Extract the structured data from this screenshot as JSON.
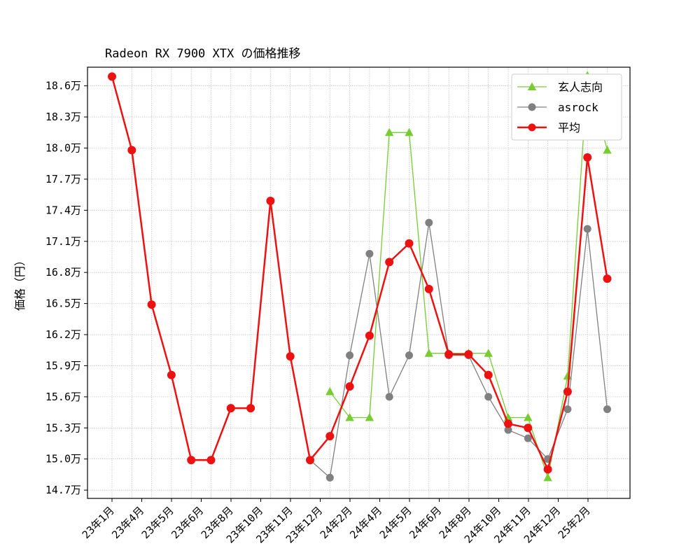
{
  "chart_data": {
    "type": "line",
    "title": "Radeon RX 7900 XTX の価格推移",
    "xlabel": "",
    "ylabel": "価格（円）",
    "ylim": [
      14.62,
      18.78
    ],
    "y_unit_suffix": "万",
    "yticks": [
      14.7,
      15.0,
      15.3,
      15.6,
      15.9,
      16.2,
      16.5,
      16.8,
      17.1,
      17.4,
      17.7,
      18.0,
      18.3,
      18.6
    ],
    "ytick_labels": [
      "14.7万",
      "15.0万",
      "15.3万",
      "15.6万",
      "15.9万",
      "16.2万",
      "16.5万",
      "16.8万",
      "17.1万",
      "17.4万",
      "17.7万",
      "18.0万",
      "18.3万",
      "18.6万"
    ],
    "xtick_labels": [
      "23年1月",
      "23年4月",
      "23年5月",
      "23年6月",
      "23年8月",
      "23年10月",
      "23年11月",
      "23年12月",
      "24年2月",
      "24年4月",
      "24年5月",
      "24年6月",
      "24年8月",
      "24年10月",
      "24年11月",
      "24年12月",
      "25年2月"
    ],
    "grid": true,
    "legend_position": "top-right",
    "series": [
      {
        "name": "玄人志向",
        "color": "#77cc33",
        "marker": "triangle",
        "values": [
          null,
          null,
          null,
          null,
          null,
          null,
          null,
          null,
          null,
          null,
          null,
          15.65,
          15.4,
          15.4,
          18.15,
          18.15,
          16.02,
          16.02,
          16.02,
          16.02,
          15.4,
          15.4,
          14.82,
          15.8,
          18.7,
          17.98
        ]
      },
      {
        "name": "asrock",
        "color": "#808080",
        "marker": "circle",
        "values": [
          null,
          null,
          null,
          null,
          null,
          null,
          null,
          null,
          null,
          null,
          14.99,
          14.82,
          16.0,
          16.98,
          15.6,
          16.0,
          17.28,
          16.0,
          16.0,
          15.6,
          15.28,
          15.2,
          15.0,
          15.48,
          17.22,
          15.48
        ]
      },
      {
        "name": "平均",
        "color": "#ee1111",
        "marker": "circle",
        "values": [
          18.69,
          17.98,
          16.49,
          15.81,
          14.99,
          14.99,
          15.49,
          15.49,
          17.49,
          15.99,
          14.99,
          15.22,
          15.7,
          16.19,
          16.9,
          17.08,
          16.64,
          16.01,
          16.01,
          15.81,
          15.34,
          15.3,
          14.9,
          15.65,
          17.91,
          16.74
        ]
      }
    ]
  }
}
